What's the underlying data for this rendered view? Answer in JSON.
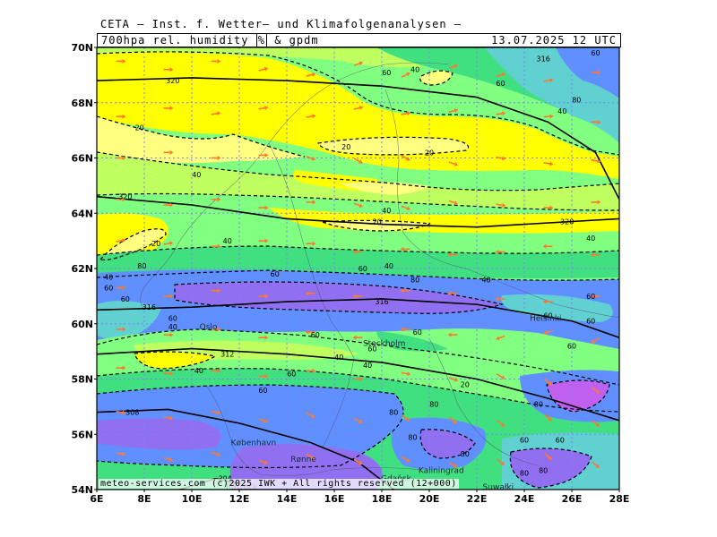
{
  "title": "CETA – Inst. f. Wetter– und Klimafolgenanalysen –",
  "header": {
    "field_prefix": "700hpa rel. humidity",
    "unit": "%",
    "field_suffix": "& gpdm",
    "date": "13.07.2025 12 UTC"
  },
  "footer": "meteo-services.com (c)2025 IWK + All rights reserved (12+000)",
  "axes": {
    "lat_labels": [
      "70N",
      "68N",
      "66N",
      "64N",
      "62N",
      "60N",
      "58N",
      "56N",
      "54N"
    ],
    "lon_labels": [
      "6E",
      "8E",
      "10E",
      "12E",
      "14E",
      "16E",
      "18E",
      "20E",
      "22E",
      "24E",
      "26E",
      "28E"
    ],
    "lat_range": [
      54,
      70
    ],
    "lon_range": [
      6,
      28
    ]
  },
  "colors": {
    "very_dry": "#ffff80",
    "dry": "#ffff00",
    "moderate": "#c0ff60",
    "medium": "#80ff80",
    "moist": "#40e080",
    "humid": "#60d0d0",
    "wet": "#6090ff",
    "very_wet": "#9070f0",
    "saturated": "#c060f0",
    "grid": "#8080ff",
    "wind_arrow": "#ff7830"
  },
  "cities": [
    {
      "name": "Oslo",
      "lon": 10.7,
      "lat": 59.9
    },
    {
      "name": "Stockholm",
      "lon": 18.1,
      "lat": 59.3
    },
    {
      "name": "Helsinki",
      "lon": 24.9,
      "lat": 60.2
    },
    {
      "name": "København",
      "lon": 12.6,
      "lat": 55.7
    },
    {
      "name": "Rønne",
      "lon": 14.7,
      "lat": 55.1
    },
    {
      "name": "Kaliningrad",
      "lon": 20.5,
      "lat": 54.7
    },
    {
      "name": "Rostock",
      "lon": 12.1,
      "lat": 54.1
    },
    {
      "name": "Gdańsk",
      "lon": 18.6,
      "lat": 54.4
    },
    {
      "name": "Suwałki",
      "lon": 22.9,
      "lat": 54.1
    }
  ],
  "humidity_labels": [
    {
      "text": "20",
      "lon": 7.8,
      "lat": 67.1
    },
    {
      "text": "20",
      "lon": 8.5,
      "lat": 62.9
    },
    {
      "text": "20",
      "lon": 16.5,
      "lat": 66.4
    },
    {
      "text": "20",
      "lon": 20.0,
      "lat": 66.2
    },
    {
      "text": "20",
      "lon": 17.8,
      "lat": 63.7
    },
    {
      "text": "20",
      "lon": 21.5,
      "lat": 57.8
    },
    {
      "text": "40",
      "lon": 10.2,
      "lat": 65.4
    },
    {
      "text": "40",
      "lon": 11.5,
      "lat": 63.0
    },
    {
      "text": "40",
      "lon": 18.2,
      "lat": 64.1
    },
    {
      "text": "40",
      "lon": 18.3,
      "lat": 62.1
    },
    {
      "text": "40",
      "lon": 19.4,
      "lat": 69.2
    },
    {
      "text": "40",
      "lon": 22.4,
      "lat": 61.6
    },
    {
      "text": "40",
      "lon": 25.6,
      "lat": 67.7
    },
    {
      "text": "40",
      "lon": 26.8,
      "lat": 63.1
    },
    {
      "text": "40",
      "lon": 9.2,
      "lat": 59.9
    },
    {
      "text": "40",
      "lon": 10.3,
      "lat": 58.3
    },
    {
      "text": "40",
      "lon": 16.2,
      "lat": 58.8
    },
    {
      "text": "40",
      "lon": 17.4,
      "lat": 58.5
    },
    {
      "text": "40",
      "lon": 6.5,
      "lat": 61.7
    },
    {
      "text": "60",
      "lon": 6.5,
      "lat": 61.3
    },
    {
      "text": "60",
      "lon": 9.2,
      "lat": 60.2
    },
    {
      "text": "60",
      "lon": 13.5,
      "lat": 61.8
    },
    {
      "text": "60",
      "lon": 15.2,
      "lat": 59.6
    },
    {
      "text": "60",
      "lon": 17.6,
      "lat": 59.1
    },
    {
      "text": "60",
      "lon": 14.2,
      "lat": 58.2
    },
    {
      "text": "60",
      "lon": 17.2,
      "lat": 62.0
    },
    {
      "text": "60",
      "lon": 18.2,
      "lat": 69.1
    },
    {
      "text": "60",
      "lon": 23.0,
      "lat": 68.7
    },
    {
      "text": "60",
      "lon": 26.8,
      "lat": 61.0
    },
    {
      "text": "60",
      "lon": 26.8,
      "lat": 60.1
    },
    {
      "text": "60",
      "lon": 26.0,
      "lat": 59.2
    },
    {
      "text": "60",
      "lon": 24.0,
      "lat": 55.8
    },
    {
      "text": "60",
      "lon": 25.5,
      "lat": 55.8
    },
    {
      "text": "60",
      "lon": 27.0,
      "lat": 69.8
    },
    {
      "text": "60",
      "lon": 19.5,
      "lat": 59.7
    },
    {
      "text": "60",
      "lon": 13.0,
      "lat": 57.6
    },
    {
      "text": "60",
      "lon": 7.2,
      "lat": 60.9
    },
    {
      "text": "60",
      "lon": 25.0,
      "lat": 60.3
    },
    {
      "text": "80",
      "lon": 19.4,
      "lat": 61.6
    },
    {
      "text": "80",
      "lon": 18.5,
      "lat": 56.8
    },
    {
      "text": "80",
      "lon": 20.2,
      "lat": 57.1
    },
    {
      "text": "80",
      "lon": 19.3,
      "lat": 55.9
    },
    {
      "text": "80",
      "lon": 21.5,
      "lat": 55.3
    },
    {
      "text": "80",
      "lon": 24.0,
      "lat": 54.6
    },
    {
      "text": "80",
      "lon": 24.8,
      "lat": 54.7
    },
    {
      "text": "80",
      "lon": 24.6,
      "lat": 57.1
    },
    {
      "text": "80",
      "lon": 26.2,
      "lat": 68.1
    },
    {
      "text": "80",
      "lon": 7.9,
      "lat": 62.1
    }
  ],
  "height_labels": [
    {
      "text": "320",
      "lon": 9.2,
      "lat": 68.8
    },
    {
      "text": "320",
      "lon": 7.2,
      "lat": 64.6
    },
    {
      "text": "320",
      "lon": 25.8,
      "lat": 63.7
    },
    {
      "text": "316",
      "lon": 8.2,
      "lat": 60.6
    },
    {
      "text": "316",
      "lon": 18.0,
      "lat": 60.8
    },
    {
      "text": "316",
      "lon": 24.8,
      "lat": 69.6
    },
    {
      "text": "312",
      "lon": 11.5,
      "lat": 58.9
    },
    {
      "text": "308",
      "lon": 7.5,
      "lat": 56.8
    },
    {
      "text": "304",
      "lon": 11.4,
      "lat": 54.4
    }
  ],
  "geo_lines": [
    [
      [
        6,
        68.8
      ],
      [
        10,
        68.9
      ],
      [
        14,
        68.8
      ],
      [
        18,
        68.6
      ],
      [
        22,
        68.2
      ],
      [
        25,
        67.3
      ],
      [
        27,
        66.2
      ],
      [
        28,
        64.5
      ]
    ],
    [
      [
        6,
        64.6
      ],
      [
        10,
        64.3
      ],
      [
        14,
        63.8
      ],
      [
        18,
        63.6
      ],
      [
        22,
        63.5
      ],
      [
        26,
        63.7
      ],
      [
        28,
        63.8
      ]
    ],
    [
      [
        6,
        60.5
      ],
      [
        10,
        60.6
      ],
      [
        14,
        60.8
      ],
      [
        18,
        60.9
      ],
      [
        22,
        60.7
      ],
      [
        26,
        60.1
      ],
      [
        28,
        59.5
      ]
    ],
    [
      [
        6,
        58.9
      ],
      [
        10,
        59.1
      ],
      [
        14,
        58.9
      ],
      [
        18,
        58.6
      ],
      [
        22,
        58.0
      ],
      [
        25,
        57.3
      ],
      [
        28,
        56.5
      ]
    ],
    [
      [
        6,
        56.8
      ],
      [
        9,
        56.9
      ],
      [
        12,
        56.4
      ],
      [
        15,
        55.7
      ],
      [
        17,
        55.0
      ],
      [
        18.5,
        54.0
      ]
    ],
    [
      [
        9.5,
        54.0
      ],
      [
        11,
        54.4
      ],
      [
        12,
        54.2
      ]
    ]
  ],
  "wind_arrows": [
    [
      7,
      69.5,
      0
    ],
    [
      9,
      69.2,
      0
    ],
    [
      11,
      69.5,
      0
    ],
    [
      13,
      69.2,
      15
    ],
    [
      15,
      69.0,
      15
    ],
    [
      17,
      69.4,
      20
    ],
    [
      19,
      69.0,
      25
    ],
    [
      21,
      69.3,
      20
    ],
    [
      23,
      69.0,
      15
    ],
    [
      25,
      68.8,
      10
    ],
    [
      27,
      69.1,
      0
    ],
    [
      7,
      67.5,
      0
    ],
    [
      9,
      67.8,
      0
    ],
    [
      11,
      67.6,
      10
    ],
    [
      13,
      67.8,
      10
    ],
    [
      15,
      67.5,
      10
    ],
    [
      17,
      67.8,
      15
    ],
    [
      19,
      67.6,
      10
    ],
    [
      21,
      67.7,
      15
    ],
    [
      23,
      67.6,
      10
    ],
    [
      25,
      67.5,
      5
    ],
    [
      27,
      67.3,
      -5
    ],
    [
      7,
      66.0,
      0
    ],
    [
      9,
      66.2,
      0
    ],
    [
      11,
      66.0,
      0
    ],
    [
      13,
      66.1,
      0
    ],
    [
      15,
      66.0,
      -20
    ],
    [
      17,
      65.9,
      -30
    ],
    [
      19,
      66.0,
      -30
    ],
    [
      21,
      65.8,
      -20
    ],
    [
      23,
      66.0,
      -10
    ],
    [
      25,
      65.8,
      -10
    ],
    [
      27,
      65.9,
      -10
    ],
    [
      7,
      64.5,
      0
    ],
    [
      9,
      64.3,
      0
    ],
    [
      11,
      64.5,
      0
    ],
    [
      13,
      64.2,
      0
    ],
    [
      15,
      64.4,
      0
    ],
    [
      17,
      64.3,
      -20
    ],
    [
      19,
      64.2,
      -20
    ],
    [
      21,
      64.4,
      -20
    ],
    [
      23,
      64.3,
      -10
    ],
    [
      25,
      64.2,
      0
    ],
    [
      27,
      64.4,
      0
    ],
    [
      7,
      63.0,
      10
    ],
    [
      9,
      62.9,
      10
    ],
    [
      11,
      62.8,
      0
    ],
    [
      13,
      63.0,
      0
    ],
    [
      15,
      62.9,
      0
    ],
    [
      17,
      62.6,
      180
    ],
    [
      19,
      62.7,
      180
    ],
    [
      21,
      62.5,
      180
    ],
    [
      23,
      62.6,
      180
    ],
    [
      25,
      62.8,
      180
    ],
    [
      27,
      62.5,
      180
    ],
    [
      7,
      61.3,
      0
    ],
    [
      9,
      61.0,
      0
    ],
    [
      11,
      61.2,
      0
    ],
    [
      13,
      61.0,
      0
    ],
    [
      15,
      61.1,
      180
    ],
    [
      17,
      61.0,
      180
    ],
    [
      19,
      61.2,
      180
    ],
    [
      21,
      61.1,
      180
    ],
    [
      23,
      60.9,
      180
    ],
    [
      25,
      60.8,
      180
    ],
    [
      27,
      61.0,
      180
    ],
    [
      7,
      59.8,
      0
    ],
    [
      9,
      59.6,
      0
    ],
    [
      11,
      59.8,
      0
    ],
    [
      13,
      59.5,
      0
    ],
    [
      15,
      59.7,
      180
    ],
    [
      17,
      59.5,
      180
    ],
    [
      19,
      59.8,
      180
    ],
    [
      21,
      59.6,
      180
    ],
    [
      23,
      59.5,
      -160
    ],
    [
      25,
      59.7,
      -160
    ],
    [
      27,
      59.4,
      -150
    ],
    [
      7,
      58.4,
      0
    ],
    [
      9,
      58.2,
      0
    ],
    [
      11,
      58.3,
      0
    ],
    [
      13,
      58.1,
      0
    ],
    [
      15,
      58.3,
      0
    ],
    [
      17,
      58.0,
      0
    ],
    [
      19,
      58.2,
      -10
    ],
    [
      21,
      58.0,
      -20
    ],
    [
      23,
      58.1,
      -30
    ],
    [
      25,
      57.9,
      -40
    ],
    [
      27,
      57.6,
      -40
    ],
    [
      7,
      56.8,
      -10
    ],
    [
      9,
      56.6,
      -10
    ],
    [
      11,
      56.8,
      -10
    ],
    [
      13,
      56.5,
      -20
    ],
    [
      15,
      56.7,
      -30
    ],
    [
      17,
      56.5,
      -30
    ],
    [
      19,
      56.6,
      -40
    ],
    [
      21,
      56.5,
      -40
    ],
    [
      23,
      56.4,
      -40
    ],
    [
      25,
      56.6,
      -40
    ],
    [
      27,
      56.4,
      -40
    ],
    [
      7,
      55.3,
      -10
    ],
    [
      9,
      55.1,
      -20
    ],
    [
      11,
      55.3,
      -20
    ],
    [
      13,
      55.0,
      -20
    ],
    [
      15,
      55.2,
      -30
    ],
    [
      17,
      55.0,
      -30
    ],
    [
      19,
      55.1,
      -30
    ],
    [
      21,
      54.9,
      -30
    ],
    [
      23,
      55.0,
      -40
    ],
    [
      25,
      55.2,
      -40
    ],
    [
      27,
      54.9,
      -40
    ]
  ]
}
